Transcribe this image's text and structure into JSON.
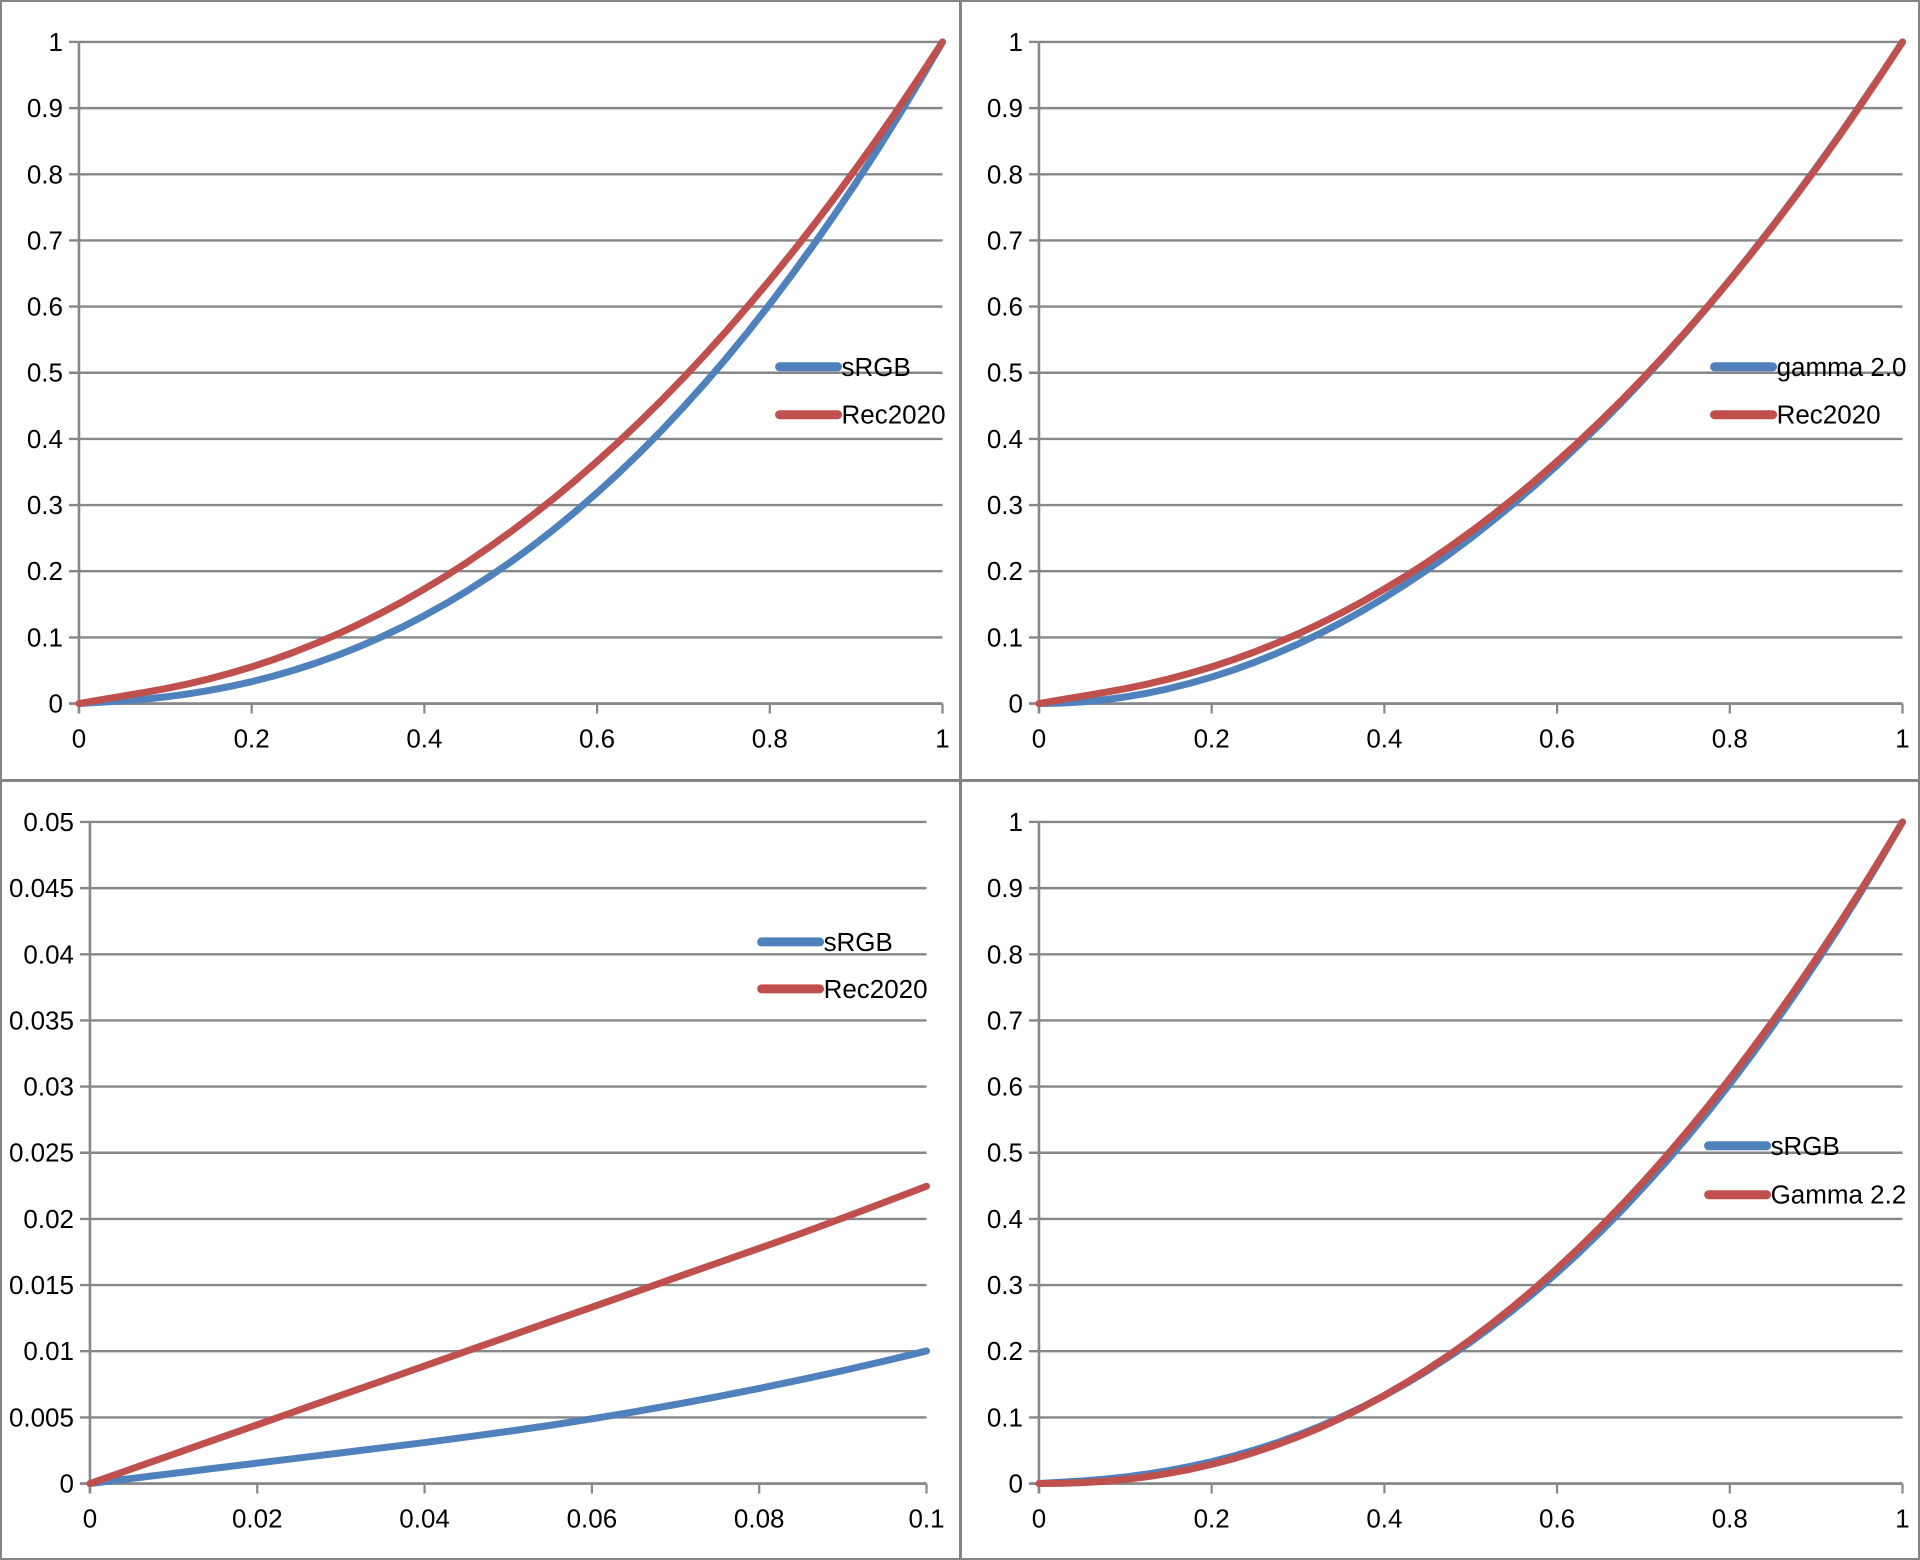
{
  "colors": {
    "series_blue": "#4F81BD",
    "series_red": "#C0504D",
    "gridline": "#878787",
    "axis": "#878787",
    "tick": "#878787",
    "text": "#000000",
    "divider": "#848484",
    "background": "#FFFFFF"
  },
  "chart_data": [
    {
      "id": "srgb-vs-rec2020-full",
      "type": "line",
      "position": "top-left",
      "title": "",
      "xlabel": "",
      "ylabel": "",
      "xlim": [
        0,
        1
      ],
      "ylim": [
        0,
        1
      ],
      "grid": "horizontal",
      "legend_position": "right-middle-overlay",
      "x_ticks": [
        "0",
        "0.2",
        "0.4",
        "0.6",
        "0.8",
        "1"
      ],
      "y_ticks": [
        "1",
        "0.9",
        "0.8",
        "0.7",
        "0.6",
        "0.5",
        "0.4",
        "0.3",
        "0.2",
        "0.1",
        "0"
      ],
      "x": [
        0,
        0.025,
        0.05,
        0.075,
        0.1,
        0.125,
        0.15,
        0.175,
        0.2,
        0.225,
        0.25,
        0.275,
        0.3,
        0.325,
        0.35,
        0.375,
        0.4,
        0.425,
        0.45,
        0.475,
        0.5,
        0.525,
        0.55,
        0.575,
        0.6,
        0.625,
        0.65,
        0.675,
        0.7,
        0.725,
        0.75,
        0.775,
        0.8,
        0.825,
        0.85,
        0.875,
        0.9,
        0.925,
        0.95,
        0.975,
        1
      ],
      "series": [
        {
          "name": "sRGB",
          "color": "#4F81BD",
          "values": [
            0,
            0.00193,
            0.00394,
            0.00657,
            0.01002,
            0.01435,
            0.01963,
            0.02585,
            0.0331,
            0.04143,
            0.05087,
            0.06148,
            0.07324,
            0.08624,
            0.10048,
            0.11601,
            0.13287,
            0.15108,
            0.17065,
            0.19166,
            0.21404,
            0.23796,
            0.2633,
            0.29014,
            0.31855,
            0.3485,
            0.38006,
            0.41321,
            0.44799,
            0.4844,
            0.52252,
            0.56231,
            0.60383,
            0.64707,
            0.69209,
            0.73884,
            0.78741,
            0.8378,
            0.89001,
            0.94407,
            1
          ]
        },
        {
          "name": "Rec2020",
          "color": "#C0504D",
          "values": [
            0,
            0.00556,
            0.01111,
            0.01667,
            0.02247,
            0.02924,
            0.03698,
            0.04572,
            0.05551,
            0.06632,
            0.07826,
            0.09125,
            0.10533,
            0.12057,
            0.13689,
            0.15443,
            0.1731,
            0.19296,
            0.21397,
            0.23626,
            0.25972,
            0.28441,
            0.31034,
            0.33752,
            0.36597,
            0.39568,
            0.42663,
            0.45895,
            0.49247,
            0.52742,
            0.56356,
            0.60115,
            0.63999,
            0.68018,
            0.72177,
            0.76472,
            0.809,
            0.85468,
            0.90172,
            0.95016,
            1
          ]
        }
      ]
    },
    {
      "id": "gamma20-vs-rec2020",
      "type": "line",
      "position": "top-right",
      "title": "",
      "xlabel": "",
      "ylabel": "",
      "xlim": [
        0,
        1
      ],
      "ylim": [
        0,
        1
      ],
      "grid": "horizontal",
      "legend_position": "right-middle-overlay",
      "x_ticks": [
        "0",
        "0.2",
        "0.4",
        "0.6",
        "0.8",
        "1"
      ],
      "y_ticks": [
        "1",
        "0.9",
        "0.8",
        "0.7",
        "0.6",
        "0.5",
        "0.4",
        "0.3",
        "0.2",
        "0.1",
        "0"
      ],
      "x": [
        0,
        0.025,
        0.05,
        0.075,
        0.1,
        0.125,
        0.15,
        0.175,
        0.2,
        0.225,
        0.25,
        0.275,
        0.3,
        0.325,
        0.35,
        0.375,
        0.4,
        0.425,
        0.45,
        0.475,
        0.5,
        0.525,
        0.55,
        0.575,
        0.6,
        0.625,
        0.65,
        0.675,
        0.7,
        0.725,
        0.75,
        0.775,
        0.8,
        0.825,
        0.85,
        0.875,
        0.9,
        0.925,
        0.95,
        0.975,
        1
      ],
      "series": [
        {
          "name": "gamma 2.0",
          "color": "#4F81BD",
          "values": [
            0,
            0.00063,
            0.0025,
            0.00563,
            0.01,
            0.01563,
            0.0225,
            0.03063,
            0.04,
            0.05063,
            0.0625,
            0.07563,
            0.09,
            0.10563,
            0.1225,
            0.14063,
            0.16,
            0.18063,
            0.2025,
            0.22563,
            0.25,
            0.27563,
            0.3025,
            0.33063,
            0.36,
            0.39063,
            0.4225,
            0.45563,
            0.49,
            0.52563,
            0.5625,
            0.60063,
            0.64,
            0.68063,
            0.7225,
            0.76563,
            0.81,
            0.85563,
            0.9025,
            0.95063,
            1
          ]
        },
        {
          "name": "Rec2020",
          "color": "#C0504D",
          "values": [
            0,
            0.00556,
            0.01111,
            0.01667,
            0.02247,
            0.02924,
            0.03698,
            0.04572,
            0.05551,
            0.06632,
            0.07826,
            0.09125,
            0.10533,
            0.12057,
            0.13689,
            0.15443,
            0.1731,
            0.19296,
            0.21397,
            0.23626,
            0.25972,
            0.28441,
            0.31034,
            0.33752,
            0.36597,
            0.39568,
            0.42663,
            0.45895,
            0.49247,
            0.52742,
            0.56356,
            0.60115,
            0.63999,
            0.68018,
            0.72177,
            0.76472,
            0.809,
            0.85468,
            0.90172,
            0.95016,
            1
          ]
        }
      ]
    },
    {
      "id": "srgb-vs-rec2020-dark-region",
      "type": "line",
      "position": "bottom-left",
      "title": "",
      "xlabel": "",
      "ylabel": "",
      "xlim": [
        0,
        0.1
      ],
      "ylim": [
        0,
        0.05
      ],
      "grid": "horizontal",
      "legend_position": "right-upper-overlay",
      "x_ticks": [
        "0",
        "0.02",
        "0.04",
        "0.06",
        "0.08",
        "0.1"
      ],
      "y_ticks": [
        "0.05",
        "0.045",
        "0.04",
        "0.035",
        "0.03",
        "0.025",
        "0.02",
        "0.015",
        "0.01",
        "0.005",
        "0"
      ],
      "x": [
        0,
        0.005,
        0.01,
        0.015,
        0.02,
        0.025,
        0.03,
        0.035,
        0.04,
        0.045,
        0.05,
        0.055,
        0.06,
        0.065,
        0.07,
        0.075,
        0.08,
        0.085,
        0.09,
        0.095,
        0.1
      ],
      "series": [
        {
          "name": "sRGB",
          "color": "#4F81BD",
          "values": [
            0,
            0.000387,
            0.000774,
            0.001161,
            0.001548,
            0.001935,
            0.002322,
            0.002709,
            0.003096,
            0.003509,
            0.003944,
            0.004398,
            0.004893,
            0.005419,
            0.005977,
            0.006567,
            0.00719,
            0.007846,
            0.008535,
            0.009258,
            0.010023
          ]
        },
        {
          "name": "Rec2020",
          "color": "#C0504D",
          "values": [
            0,
            0.001111,
            0.002222,
            0.003333,
            0.004444,
            0.005556,
            0.006667,
            0.007778,
            0.008889,
            0.01,
            0.011111,
            0.012222,
            0.013333,
            0.014444,
            0.015556,
            0.016667,
            0.017778,
            0.0189,
            0.020065,
            0.021262,
            0.022468
          ]
        }
      ]
    },
    {
      "id": "srgb-vs-gamma22",
      "type": "line",
      "position": "bottom-right",
      "title": "",
      "xlabel": "",
      "ylabel": "",
      "xlim": [
        0,
        1
      ],
      "ylim": [
        0,
        1
      ],
      "grid": "horizontal",
      "legend_position": "right-middle-overlay",
      "x_ticks": [
        "0",
        "0.2",
        "0.4",
        "0.6",
        "0.8",
        "1"
      ],
      "y_ticks": [
        "1",
        "0.9",
        "0.8",
        "0.7",
        "0.6",
        "0.5",
        "0.4",
        "0.3",
        "0.2",
        "0.1",
        "0"
      ],
      "x": [
        0,
        0.025,
        0.05,
        0.075,
        0.1,
        0.125,
        0.15,
        0.175,
        0.2,
        0.225,
        0.25,
        0.275,
        0.3,
        0.325,
        0.35,
        0.375,
        0.4,
        0.425,
        0.45,
        0.475,
        0.5,
        0.525,
        0.55,
        0.575,
        0.6,
        0.625,
        0.65,
        0.675,
        0.7,
        0.725,
        0.75,
        0.775,
        0.8,
        0.825,
        0.85,
        0.875,
        0.9,
        0.925,
        0.95,
        0.975,
        1
      ],
      "series": [
        {
          "name": "sRGB",
          "color": "#4F81BD",
          "values": [
            0,
            0.00193,
            0.00394,
            0.00657,
            0.01002,
            0.01435,
            0.01963,
            0.02585,
            0.0331,
            0.04143,
            0.05087,
            0.06148,
            0.07324,
            0.08624,
            0.10048,
            0.11601,
            0.13287,
            0.15108,
            0.17065,
            0.19166,
            0.21404,
            0.23796,
            0.2633,
            0.29014,
            0.31855,
            0.3485,
            0.38006,
            0.41321,
            0.44799,
            0.4844,
            0.52252,
            0.56231,
            0.60383,
            0.64707,
            0.69209,
            0.73884,
            0.78741,
            0.8378,
            0.89001,
            0.94407,
            1
          ]
        },
        {
          "name": "Gamma 2.2",
          "color": "#C0504D",
          "values": [
            0,
            0.0003,
            0.00137,
            0.00335,
            0.00631,
            0.01031,
            0.0154,
            0.02161,
            0.02899,
            0.03753,
            0.04737,
            0.05843,
            0.07074,
            0.08414,
            0.0993,
            0.11555,
            0.1332,
            0.15221,
            0.17264,
            0.19442,
            0.21764,
            0.24227,
            0.26843,
            0.29598,
            0.32505,
            0.35558,
            0.38762,
            0.42118,
            0.45626,
            0.49289,
            0.5311,
            0.57076,
            0.6121,
            0.65512,
            0.69944,
            0.74545,
            0.79311,
            0.84239,
            0.89327,
            0.94582,
            1
          ]
        }
      ]
    }
  ]
}
